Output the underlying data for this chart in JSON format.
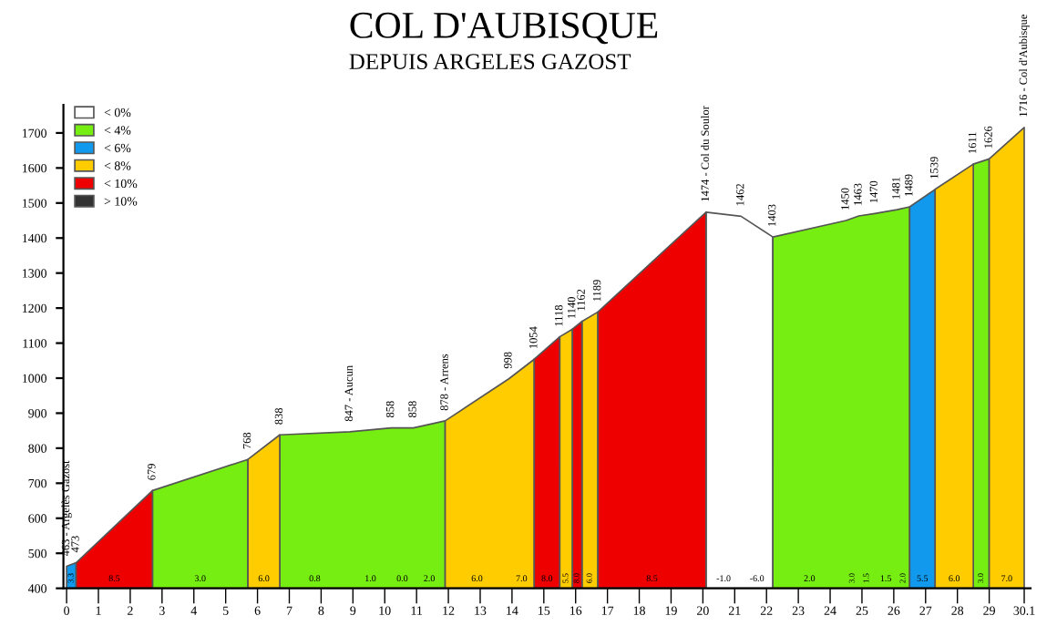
{
  "chart_data": {
    "type": "area",
    "title": "COL D'AUBISQUE",
    "subtitle": "DEPUIS ARGELES GAZOST",
    "xlim": [
      -0.1,
      30.3
    ],
    "ylim": [
      400,
      1780
    ],
    "xticks": [
      0,
      1,
      2,
      3,
      4,
      5,
      6,
      7,
      8,
      9,
      10,
      11,
      12,
      13,
      14,
      15,
      16,
      17,
      18,
      19,
      20,
      21,
      22,
      23,
      24,
      25,
      26,
      27,
      28,
      29,
      30.1
    ],
    "yticks": [
      400,
      500,
      600,
      700,
      800,
      900,
      1000,
      1100,
      1200,
      1300,
      1400,
      1500,
      1600,
      1700
    ],
    "grid": false,
    "legend": "top left",
    "series": [
      {
        "name": "< 0%",
        "color": "#ffffff",
        "x": [
          20.1,
          21.2,
          22.2
        ],
        "values": [
          1474,
          1462,
          1403
        ]
      },
      {
        "name": "< 4%",
        "color": "#77ee11",
        "x": [
          2.7,
          5.7,
          6.2,
          6.7,
          8.9,
          10.2,
          10.9,
          11.9,
          17,
          22.2,
          24.5,
          24.9,
          25.4,
          26.1,
          26.5,
          27.5,
          28.5,
          29.0
        ],
        "values": [
          679,
          768,
          null,
          838,
          847,
          858,
          858,
          878,
          null,
          1403,
          1450,
          1463,
          1470,
          1481,
          1489,
          null,
          1611,
          1626
        ]
      },
      {
        "name": "< 6%",
        "color": "#1199ee",
        "x": [
          0,
          0.3,
          13,
          26.5,
          27.3
        ],
        "values": [
          463,
          473,
          null,
          1489,
          1539
        ]
      },
      {
        "name": "< 8%",
        "color": "#ffcc00",
        "x": [
          5.7,
          6.7,
          9,
          11.9,
          13.9,
          14.7,
          15.1,
          15.5,
          15.9,
          16.05,
          16.2,
          16.7,
          22,
          27.3,
          28.5,
          28.7,
          29.0,
          30.1
        ],
        "values": [
          768,
          838,
          null,
          878,
          998,
          1054,
          null,
          1118,
          1140,
          null,
          1162,
          1189,
          null,
          1539,
          1611,
          null,
          1626,
          1716
        ]
      },
      {
        "name": "< 10%",
        "color": "#ee0000",
        "x": [
          0.3,
          2.7,
          8,
          14.7,
          15.5,
          15.7,
          15.9,
          16.2,
          16.5,
          16.7,
          20.1
        ],
        "values": [
          473,
          679,
          null,
          1054,
          1118,
          null,
          1140,
          1162,
          null,
          1189,
          1474
        ]
      },
      {
        "name": "> 10%",
        "color": "#333333"
      }
    ],
    "annotations": [
      {
        "text": "463 - Argelès Gazost",
        "x": 0,
        "y": 463
      },
      {
        "text": "473",
        "x": 0.3,
        "y": 473
      },
      {
        "text": "679",
        "x": 2.7,
        "y": 679
      },
      {
        "text": "768",
        "x": 5.7,
        "y": 768
      },
      {
        "text": "838",
        "x": 6.7,
        "y": 838
      },
      {
        "text": "847 - Aucun",
        "x": 8.9,
        "y": 847
      },
      {
        "text": "858",
        "x": 10.2,
        "y": 858
      },
      {
        "text": "858",
        "x": 10.9,
        "y": 858
      },
      {
        "text": "878 - Arrens",
        "x": 11.9,
        "y": 878
      },
      {
        "text": "998",
        "x": 13.9,
        "y": 998
      },
      {
        "text": "1054",
        "x": 14.7,
        "y": 1054
      },
      {
        "text": "1118",
        "x": 15.5,
        "y": 1118
      },
      {
        "text": "1140",
        "x": 15.9,
        "y": 1140
      },
      {
        "text": "1162",
        "x": 16.2,
        "y": 1162
      },
      {
        "text": "1189",
        "x": 16.7,
        "y": 1189
      },
      {
        "text": "1474 - Col du Soulor",
        "x": 20.1,
        "y": 1474
      },
      {
        "text": "1462",
        "x": 21.2,
        "y": 1462
      },
      {
        "text": "1403",
        "x": 22.2,
        "y": 1403
      },
      {
        "text": "1450",
        "x": 24.5,
        "y": 1450
      },
      {
        "text": "1463",
        "x": 24.9,
        "y": 1463
      },
      {
        "text": "1470",
        "x": 25.4,
        "y": 1470
      },
      {
        "text": "1481",
        "x": 26.1,
        "y": 1481
      },
      {
        "text": "1489",
        "x": 26.5,
        "y": 1489
      },
      {
        "text": "1539",
        "x": 27.3,
        "y": 1539
      },
      {
        "text": "1611",
        "x": 28.5,
        "y": 1611
      },
      {
        "text": "1626",
        "x": 29.0,
        "y": 1626
      },
      {
        "text": "1716 - Col d'Aubisque",
        "x": 30.1,
        "y": 1716
      },
      {
        "text": "3.3",
        "x": 0.15,
        "y": 400
      },
      {
        "text": "8.5",
        "x": 1.5,
        "y": 400
      },
      {
        "text": "3.0",
        "x": 4.2,
        "y": 400
      },
      {
        "text": "6.0",
        "x": 6.2,
        "y": 400
      },
      {
        "text": "0.8",
        "x": 7.8,
        "y": 400
      },
      {
        "text": "1.0",
        "x": 9.55,
        "y": 400
      },
      {
        "text": "0.0",
        "x": 10.55,
        "y": 400
      },
      {
        "text": "2.0",
        "x": 11.4,
        "y": 400
      },
      {
        "text": "6.0",
        "x": 12.9,
        "y": 400
      },
      {
        "text": "7.0",
        "x": 14.3,
        "y": 400
      },
      {
        "text": "8.0",
        "x": 15.1,
        "y": 400
      },
      {
        "text": "5.5",
        "x": 15.7,
        "y": 400
      },
      {
        "text": "8.0",
        "x": 16.05,
        "y": 400
      },
      {
        "text": "6.0",
        "x": 16.45,
        "y": 400
      },
      {
        "text": "8.5",
        "x": 18.4,
        "y": 400
      },
      {
        "text": "-1.0",
        "x": 20.65,
        "y": 400
      },
      {
        "text": "-6.0",
        "x": 21.7,
        "y": 400
      },
      {
        "text": "2.0",
        "x": 23.35,
        "y": 400
      },
      {
        "text": "3.0",
        "x": 24.7,
        "y": 400
      },
      {
        "text": "1.5",
        "x": 25.15,
        "y": 400
      },
      {
        "text": "1.5",
        "x": 25.75,
        "y": 400
      },
      {
        "text": "2.0",
        "x": 26.3,
        "y": 400
      },
      {
        "text": "5.5",
        "x": 26.9,
        "y": 400
      },
      {
        "text": "6.0",
        "x": 27.9,
        "y": 400
      },
      {
        "text": "3.0",
        "x": 28.75,
        "y": 400
      },
      {
        "text": "7.0",
        "x": 29.55,
        "y": 400
      }
    ]
  }
}
